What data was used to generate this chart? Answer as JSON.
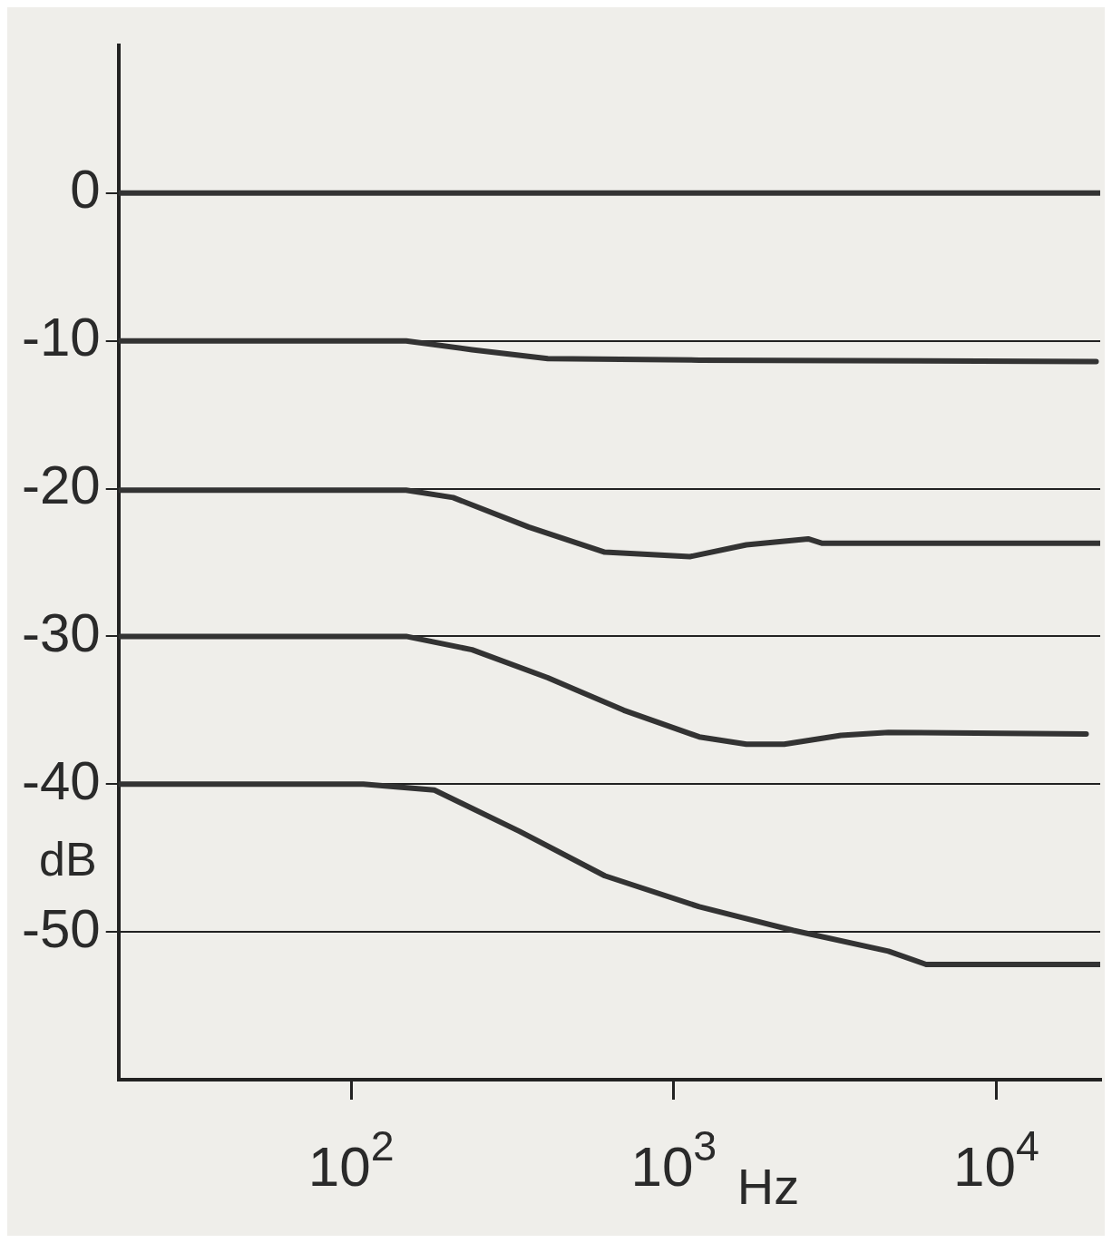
{
  "chart_data": {
    "type": "line",
    "xlabel": "Hz",
    "ylabel": "dB",
    "log": "x",
    "grid": "y",
    "legend": false,
    "marker": "none",
    "line_style": "solid",
    "xlim": [
      19,
      21000
    ],
    "ylim": [
      -60,
      10
    ],
    "xticks": [
      {
        "value": 100,
        "label": "10$^{2}$"
      },
      {
        "value": 1000,
        "label": "10$^{3}$"
      },
      {
        "value": 10000,
        "label": "10$^{4}$"
      }
    ],
    "yticks": [
      0,
      -10,
      -20,
      -30,
      -40,
      -50
    ],
    "series": [
      {
        "color": "#333333",
        "x": [
          19,
          21000
        ],
        "values": [
          0,
          0
        ]
      },
      {
        "color": "#333333",
        "x": [
          19,
          148,
          237,
          407,
          1200,
          20400
        ],
        "values": [
          -10,
          -10,
          -10.6,
          -11.2,
          -11.3,
          -11.4
        ]
      },
      {
        "color": "#333333",
        "x": [
          19,
          148,
          207,
          355,
          611,
          1122,
          1680,
          2610,
          2890,
          21000
        ],
        "values": [
          -20.1,
          -20.1,
          -20.6,
          -22.6,
          -24.3,
          -24.6,
          -23.8,
          -23.4,
          -23.7,
          -23.7
        ]
      },
      {
        "color": "#333333",
        "x": [
          19,
          148,
          237,
          407,
          700,
          1200,
          1680,
          2200,
          3300,
          4630,
          19000
        ],
        "values": [
          -30,
          -30,
          -30.9,
          -32.8,
          -35,
          -36.8,
          -37.3,
          -37.3,
          -36.7,
          -36.5,
          -36.6
        ]
      },
      {
        "color": "#333333",
        "x": [
          19,
          109,
          181,
          333,
          611,
          1200,
          2350,
          4630,
          6060,
          21000
        ],
        "values": [
          -40,
          -40,
          -40.4,
          -43.2,
          -46.2,
          -48.3,
          -49.9,
          -51.3,
          -52.2,
          -52.2
        ]
      }
    ]
  }
}
